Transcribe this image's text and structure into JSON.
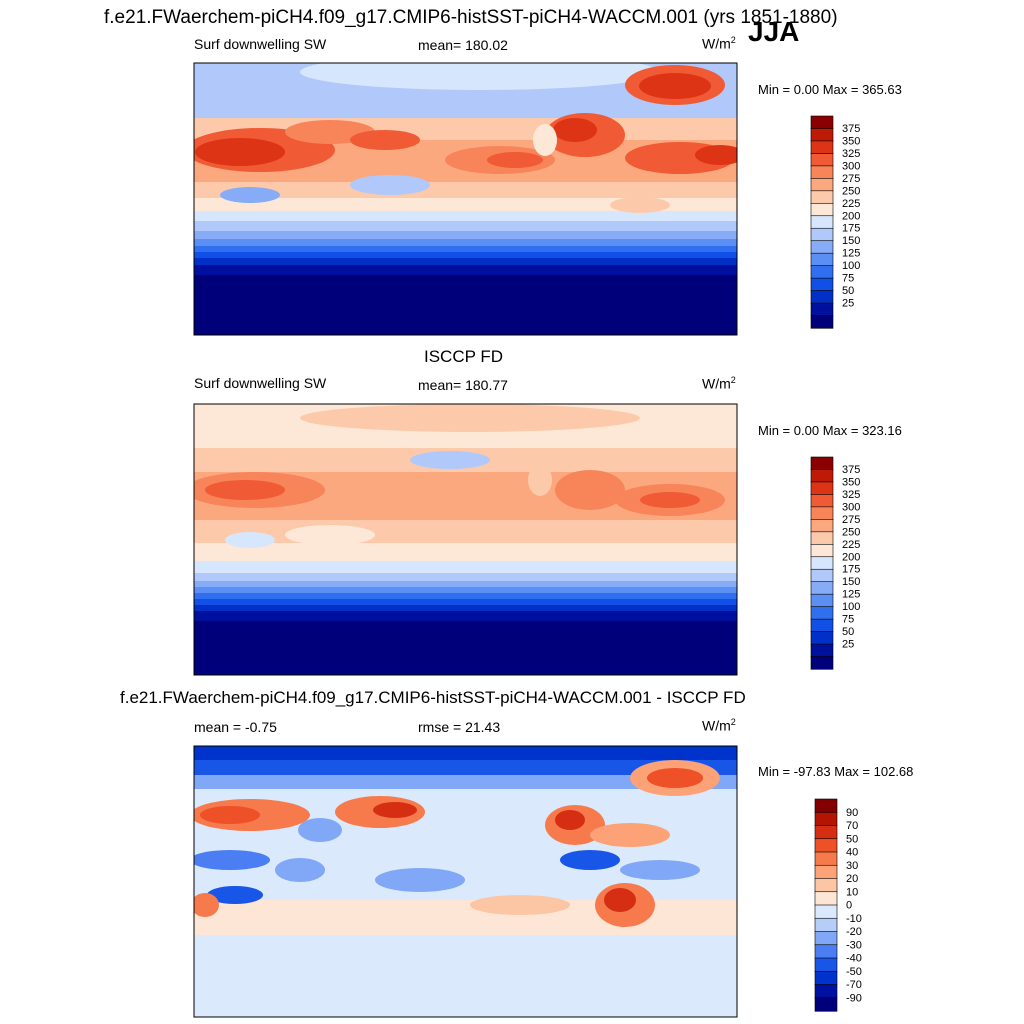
{
  "header": {
    "title": "f.e21.FWaerchem-piCH4.f09_g17.CMIP6-histSST-piCH4-WACCM.001 (yrs 1851-1880)",
    "season": "JJA"
  },
  "palettes": {
    "absolute": [
      "#00007a",
      "#00109e",
      "#0030c8",
      "#1050e6",
      "#3070f0",
      "#5c8ff4",
      "#86abf7",
      "#b0c9fa",
      "#d6e6fc",
      "#fde8d8",
      "#fccaab",
      "#fca87f",
      "#f8845a",
      "#f05a34",
      "#de3416",
      "#bf1a06",
      "#8a0000"
    ],
    "difference": [
      "#00007a",
      "#0010a0",
      "#0032cc",
      "#1856e8",
      "#4a7ef2",
      "#80a8f6",
      "#b4cdf9",
      "#dbe9fd",
      "#fde6d6",
      "#fcc6a4",
      "#fca276",
      "#f77a4c",
      "#ee5028",
      "#d62e12",
      "#b31404",
      "#820000"
    ]
  },
  "panels": [
    {
      "heading": "",
      "left_label": "Surf downwelling SW",
      "center_label": "mean= 180.02",
      "units_base": "W/m",
      "units_exp": "2",
      "min_text": "Min =   0.00",
      "max_text": "Max = 365.63",
      "colorbar_type": "absolute",
      "colorbar_labels": [
        "375",
        "350",
        "325",
        "300",
        "275",
        "250",
        "225",
        "200",
        "175",
        "150",
        "125",
        "100",
        "75",
        "50",
        "25"
      ]
    },
    {
      "heading": "ISCCP FD",
      "left_label": "Surf downwelling SW",
      "center_label": "mean= 180.77",
      "units_base": "W/m",
      "units_exp": "2",
      "min_text": "Min =   0.00",
      "max_text": "Max = 323.16",
      "colorbar_type": "absolute",
      "colorbar_labels": [
        "375",
        "350",
        "325",
        "300",
        "275",
        "250",
        "225",
        "200",
        "175",
        "150",
        "125",
        "100",
        "75",
        "50",
        "25"
      ]
    },
    {
      "heading": "f.e21.FWaerchem-piCH4.f09_g17.CMIP6-histSST-piCH4-WACCM.001 - ISCCP FD",
      "left_label": "mean =  -0.75",
      "center_label": "rmse =  21.43",
      "units_base": "W/m",
      "units_exp": "2",
      "min_text": "Min = -97.83",
      "max_text": "Max = 102.68",
      "colorbar_type": "difference",
      "colorbar_labels": [
        "90",
        "70",
        "50",
        "40",
        "30",
        "20",
        "10",
        "0",
        "-10",
        "-20",
        "-30",
        "-40",
        "-50",
        "-70",
        "-90"
      ]
    }
  ]
}
